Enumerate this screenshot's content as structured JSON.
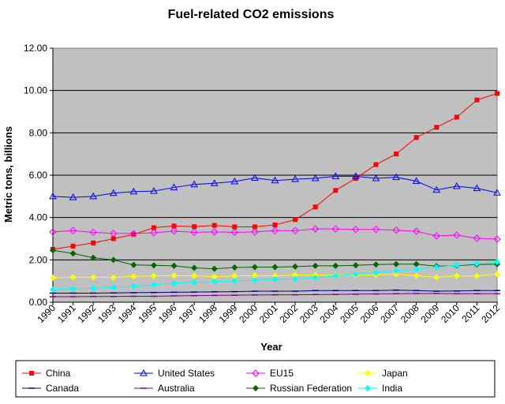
{
  "chart_data": {
    "type": "line",
    "title": "Fuel-related CO2 emissions",
    "xlabel": "Year",
    "ylabel": "Metric tons, billions",
    "ylim": [
      0,
      12
    ],
    "yticks": [
      "0.00",
      "2.00",
      "4.00",
      "6.00",
      "8.00",
      "10.00",
      "12.00"
    ],
    "grid": "horizontal",
    "legend_position": "bottom",
    "plot_background": "#c0c0c0",
    "categories": [
      "1990",
      "1991",
      "1992",
      "1993",
      "1994",
      "1995",
      "1996",
      "1997",
      "1998",
      "1999",
      "2000",
      "2001",
      "2002",
      "2003",
      "2004",
      "2005",
      "2006",
      "2007",
      "2008",
      "2009",
      "2010",
      "2011",
      "2012"
    ],
    "series": [
      {
        "name": "China",
        "color": "#ff0000",
        "marker": "square",
        "values": [
          2.5,
          2.65,
          2.8,
          3.0,
          3.2,
          3.52,
          3.6,
          3.57,
          3.63,
          3.56,
          3.56,
          3.65,
          3.9,
          4.5,
          5.28,
          5.85,
          6.5,
          7.0,
          7.78,
          8.26,
          8.74,
          9.55,
          9.86
        ]
      },
      {
        "name": "United States",
        "color": "#0000ff",
        "marker": "triangle",
        "values": [
          5.0,
          4.95,
          5.0,
          5.15,
          5.22,
          5.25,
          5.42,
          5.56,
          5.62,
          5.7,
          5.87,
          5.75,
          5.81,
          5.85,
          5.95,
          5.95,
          5.85,
          5.9,
          5.72,
          5.3,
          5.48,
          5.38,
          5.17
        ]
      },
      {
        "name": "EU15",
        "color": "#ff00ff",
        "marker": "diamond-open",
        "values": [
          3.32,
          3.38,
          3.3,
          3.25,
          3.24,
          3.28,
          3.36,
          3.3,
          3.32,
          3.3,
          3.32,
          3.38,
          3.38,
          3.46,
          3.46,
          3.44,
          3.44,
          3.4,
          3.35,
          3.13,
          3.17,
          3.02,
          2.98
        ]
      },
      {
        "name": "Japan",
        "color": "#ffff00",
        "marker": "diamond",
        "values": [
          1.15,
          1.18,
          1.18,
          1.17,
          1.22,
          1.24,
          1.26,
          1.25,
          1.2,
          1.24,
          1.26,
          1.25,
          1.28,
          1.28,
          1.28,
          1.28,
          1.29,
          1.32,
          1.25,
          1.17,
          1.24,
          1.24,
          1.33
        ]
      },
      {
        "name": "Canada",
        "color": "#000080",
        "marker": "dash",
        "values": [
          0.43,
          0.43,
          0.43,
          0.44,
          0.45,
          0.46,
          0.47,
          0.48,
          0.49,
          0.5,
          0.52,
          0.52,
          0.52,
          0.55,
          0.55,
          0.55,
          0.55,
          0.57,
          0.55,
          0.52,
          0.53,
          0.55,
          0.55
        ]
      },
      {
        "name": "Australia",
        "color": "#800080",
        "marker": "dash",
        "values": [
          0.26,
          0.26,
          0.27,
          0.27,
          0.28,
          0.28,
          0.3,
          0.31,
          0.32,
          0.33,
          0.34,
          0.35,
          0.35,
          0.36,
          0.37,
          0.38,
          0.39,
          0.4,
          0.41,
          0.41,
          0.4,
          0.4,
          0.4
        ]
      },
      {
        "name": "Russian Federation",
        "color": "#006400",
        "marker": "diamond",
        "values": [
          2.45,
          2.3,
          2.1,
          2.0,
          1.76,
          1.74,
          1.72,
          1.62,
          1.58,
          1.64,
          1.66,
          1.66,
          1.68,
          1.72,
          1.72,
          1.74,
          1.78,
          1.8,
          1.8,
          1.7,
          1.73,
          1.78,
          1.8
        ]
      },
      {
        "name": "India",
        "color": "#00ffff",
        "marker": "diamond",
        "values": [
          0.6,
          0.63,
          0.66,
          0.7,
          0.75,
          0.82,
          0.9,
          0.94,
          0.98,
          1.0,
          1.04,
          1.08,
          1.1,
          1.15,
          1.25,
          1.32,
          1.4,
          1.48,
          1.55,
          1.65,
          1.75,
          1.82,
          1.9
        ]
      }
    ]
  }
}
